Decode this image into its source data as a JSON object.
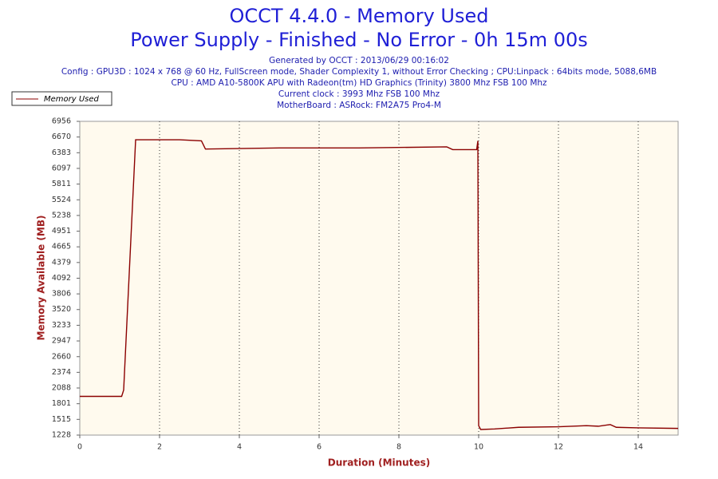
{
  "chart_data": {
    "type": "line",
    "title": "OCCT 4.4.0 - Memory Used",
    "subtitle": "Power Supply - Finished - No Error - 0h 15m 00s",
    "info": [
      "Generated by OCCT : 2013/06/29 00:16:02",
      "Config : GPU3D : 1024 x 768 @ 60 Hz, FullScreen mode, Shader Complexity 1, without Error Checking ; CPU:Linpack : 64bits mode, 5088,6MB",
      "CPU : AMD A10-5800K APU with Radeon(tm) HD Graphics (Trinity) 3800 Mhz FSB 100 Mhz",
      "Current clock : 3993 Mhz FSB 100 Mhz",
      "MotherBoard : ASRock: FM2A75 Pro4-M"
    ],
    "x_label": "Duration (Minutes)",
    "y_label": "Memory Available (MB)",
    "x": [
      0,
      1.05,
      1.1,
      1.4,
      2.5,
      3.05,
      3.15,
      5,
      7,
      9.2,
      9.35,
      9.95,
      9.98,
      10.0,
      10.05,
      10.4,
      11,
      12,
      12.7,
      13.0,
      13.3,
      13.45,
      14,
      15
    ],
    "series": [
      {
        "name": "Memory Used",
        "color": "#8b0000",
        "values": [
          1935,
          1935,
          2050,
          6620,
          6620,
          6600,
          6450,
          6470,
          6470,
          6490,
          6440,
          6440,
          6600,
          1400,
          1330,
          1340,
          1370,
          1380,
          1400,
          1390,
          1420,
          1370,
          1360,
          1350
        ]
      }
    ],
    "xlim": [
      0,
      15
    ],
    "xticks": [
      0,
      2,
      4,
      6,
      8,
      10,
      12,
      14
    ],
    "ylim": [
      1228,
      6956
    ],
    "yticks": [
      1228,
      1515,
      1801,
      2088,
      2374,
      2660,
      2947,
      3233,
      3520,
      3806,
      4092,
      4379,
      4665,
      4951,
      5238,
      5524,
      5811,
      6097,
      6383,
      6670,
      6956
    ],
    "grid": true
  }
}
